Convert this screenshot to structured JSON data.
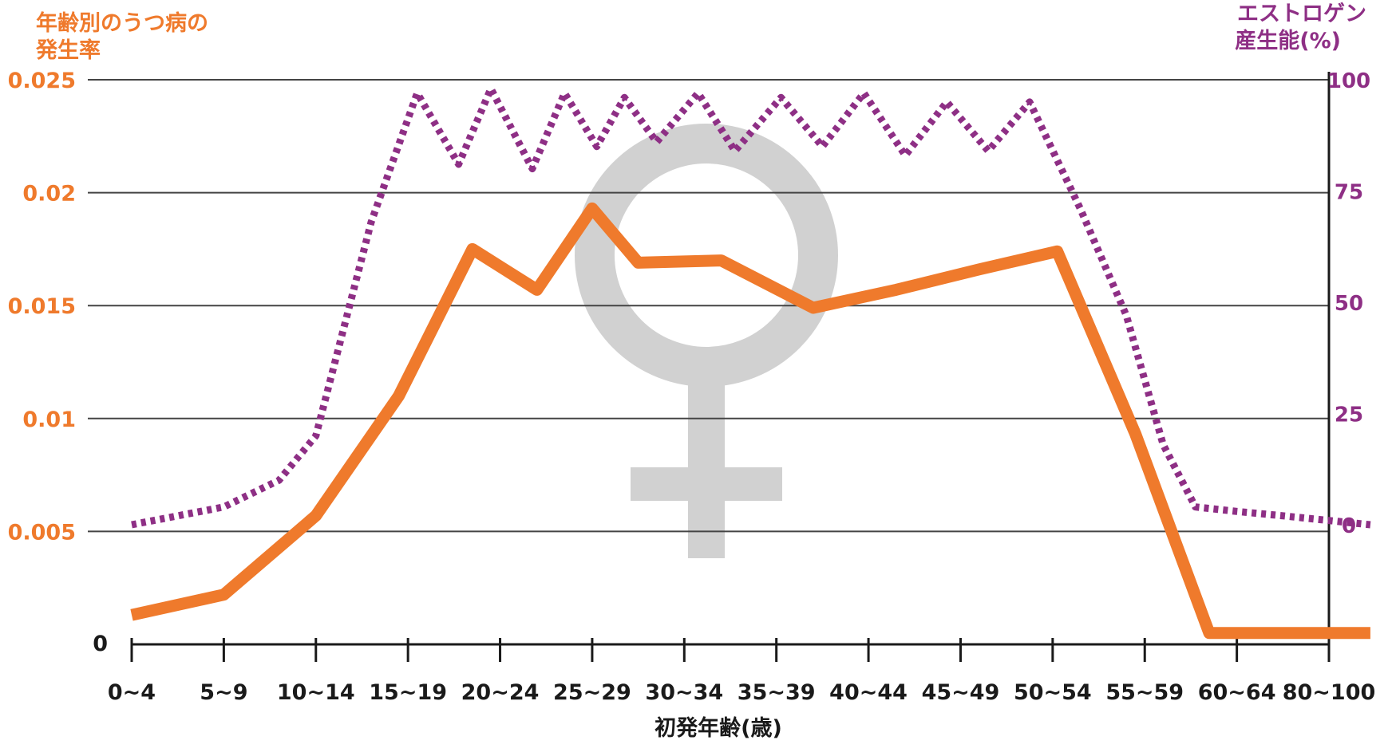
{
  "chart_data": {
    "type": "line",
    "left_axis_title": [
      "年齢別のうつ病の",
      "発生率"
    ],
    "right_axis_title": [
      "エストロゲン",
      "産生能(%)"
    ],
    "xlabel": "初発年齢(歳)",
    "categories": [
      "0~4",
      "5~9",
      "10~14",
      "15~19",
      "20~24",
      "25~29",
      "30~34",
      "35~39",
      "40~44",
      "45~49",
      "50~54",
      "55~59",
      "60~64",
      "80~100"
    ],
    "left_ticks": [
      "0",
      "0.005",
      "0.01",
      "0.015",
      "0.02",
      "0.025"
    ],
    "right_ticks": [
      "0",
      "25",
      "50",
      "75",
      "100"
    ],
    "left_ylim": [
      0,
      0.025
    ],
    "right_ylim": [
      0,
      100
    ],
    "grid": true,
    "colors": {
      "depression": "#ef7a2c",
      "estrogen": "#8e2f85",
      "left_text": "#ef7a2c",
      "right_text": "#8e2f85",
      "axis": "#1a1a1a",
      "symbol": "#c9c9c9"
    },
    "decoration": "female-symbol",
    "series": [
      {
        "key": "depression",
        "axis": "left",
        "style": "solid",
        "x": [
          0,
          1,
          2,
          2.9,
          3.7,
          4.4,
          5.0,
          5.5,
          6.4,
          7.4,
          8.3,
          9.2,
          10.05,
          10.9,
          11.7,
          12.5,
          13.45
        ],
        "y": [
          0.0013,
          0.0022,
          0.0057,
          0.011,
          0.0175,
          0.0157,
          0.0193,
          0.0169,
          0.017,
          0.0149,
          0.0157,
          0.0166,
          0.0174,
          0.0093,
          0.0005,
          0.0005,
          0.0005
        ]
      },
      {
        "key": "estrogen",
        "axis": "right",
        "style": "dotted",
        "x": [
          0,
          1,
          1.6,
          2,
          2.6,
          3.1,
          3.55,
          3.9,
          4.35,
          4.7,
          5.05,
          5.35,
          5.7,
          6.15,
          6.55,
          7.05,
          7.5,
          7.95,
          8.4,
          8.85,
          9.3,
          9.75,
          10.3,
          10.8,
          11.2,
          11.55,
          12.0,
          12.5,
          13.45
        ],
        "y": [
          0,
          4,
          10,
          20,
          68,
          97,
          81,
          98,
          80,
          97,
          85,
          96,
          86,
          97,
          84,
          96,
          85,
          97,
          83,
          95,
          84,
          95,
          71,
          47,
          18,
          4,
          3,
          2,
          0
        ]
      }
    ]
  }
}
